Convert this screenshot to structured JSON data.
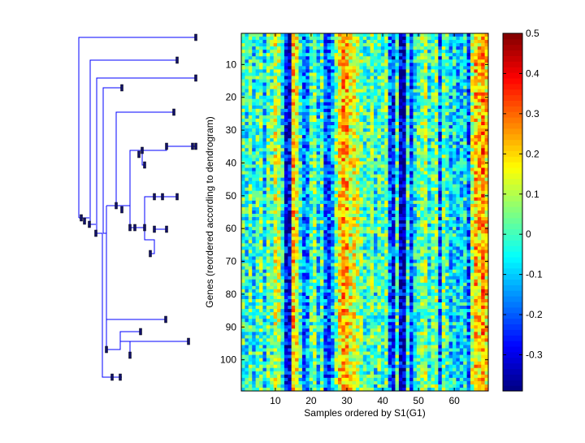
{
  "chart_data": {
    "type": "heatmap",
    "title": "",
    "xlabel": "Samples ordered by S1(G1)",
    "ylabel": "Genes (reordered according to dendrogram)",
    "n_samples": 69,
    "n_genes": 109,
    "x_ticks": [
      10,
      20,
      30,
      40,
      50,
      60
    ],
    "y_ticks": [
      10,
      20,
      30,
      40,
      50,
      60,
      70,
      80,
      90,
      100
    ],
    "colorbar": {
      "colormap": "jet",
      "range": [
        -0.39,
        0.5
      ],
      "ticks": [
        0.5,
        0.4,
        0.3,
        0.2,
        0.1,
        0,
        -0.1,
        -0.2,
        -0.3
      ],
      "tick_labels": [
        "0.5",
        "0.4",
        "0.3",
        "0.2",
        "0.1",
        "0",
        "-0.1",
        "-0.2",
        "-0.3"
      ]
    },
    "sample_mean_profile": [
      0.0,
      -0.05,
      0.02,
      -0.08,
      0.0,
      0.03,
      -0.1,
      0.05,
      0.0,
      0.12,
      0.1,
      -0.05,
      -0.28,
      -0.3,
      0.22,
      0.14,
      -0.02,
      -0.18,
      -0.15,
      0.0,
      0.05,
      -0.1,
      0.02,
      -0.2,
      -0.22,
      -0.12,
      0.05,
      0.18,
      0.24,
      0.22,
      0.15,
      0.14,
      0.1,
      0.05,
      -0.02,
      0.0,
      0.05,
      -0.05,
      0.02,
      0.0,
      0.05,
      -0.2,
      -0.25,
      0.0,
      -0.32,
      -0.34,
      0.0,
      -0.22,
      -0.05,
      0.0,
      0.05,
      0.08,
      -0.05,
      0.02,
      0.06,
      -0.2,
      0.05,
      0.0,
      -0.1,
      -0.05,
      -0.12,
      -0.08,
      -0.05,
      -0.2,
      0.1,
      0.22,
      0.2,
      0.28,
      0.18
    ]
  }
}
